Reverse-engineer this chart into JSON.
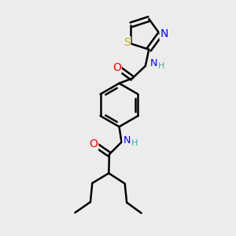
{
  "bg_color": "#ececec",
  "bond_color": "#000000",
  "bond_width": 1.8,
  "atom_colors": {
    "O": "#ff0000",
    "N": "#0000ff",
    "S": "#ccaa00",
    "H_label": "#44aaaa"
  },
  "font_size": 9,
  "fig_width": 3.0,
  "fig_height": 3.0,
  "dpi": 100,
  "xlim": [
    0,
    10
  ],
  "ylim": [
    0,
    10
  ]
}
